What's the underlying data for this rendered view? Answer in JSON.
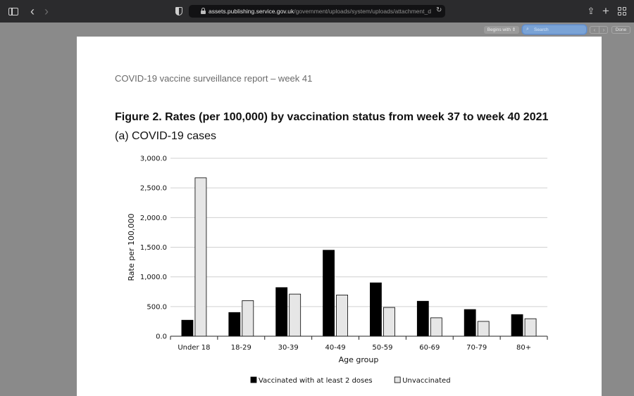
{
  "browser": {
    "url_host": "assets.publishing.service.gov.uk",
    "url_path": "/government/uploads/system/uploads/attachment_d",
    "find": {
      "mode_label": "Begins with",
      "search_placeholder": "Search",
      "done_label": "Done"
    }
  },
  "document": {
    "report_title": "COVID-19 vaccine surveillance report – week 41",
    "figure_title": "Figure 2. Rates (per 100,000) by vaccination status from week 37 to week 40 2021",
    "figure_subtitle": "(a) COVID-19 cases"
  },
  "colors": {
    "vaccinated": "#000000",
    "unvaccinated": "#e6e6e6"
  },
  "chart_data": {
    "type": "bar",
    "title": "(a) COVID-19 cases",
    "xlabel": "Age group",
    "ylabel": "Rate per 100,000",
    "ylim": [
      0,
      3000
    ],
    "yticks": [
      0,
      500,
      1000,
      1500,
      2000,
      2500,
      3000
    ],
    "ytick_labels": [
      "0.0",
      "500.0",
      "1,000.0",
      "1,500.0",
      "2,000.0",
      "2,500.0",
      "3,000.0"
    ],
    "categories": [
      "Under 18",
      "18-29",
      "30-39",
      "40-49",
      "50-59",
      "60-69",
      "70-79",
      "80+"
    ],
    "series": [
      {
        "name": "Vaccinated with at least 2 doses",
        "values": [
          270,
          400,
          820,
          1450,
          900,
          590,
          450,
          365
        ]
      },
      {
        "name": "Unvaccinated",
        "values": [
          2670,
          600,
          710,
          695,
          485,
          310,
          250,
          295
        ]
      }
    ],
    "grid": true,
    "legend": "bottom"
  }
}
